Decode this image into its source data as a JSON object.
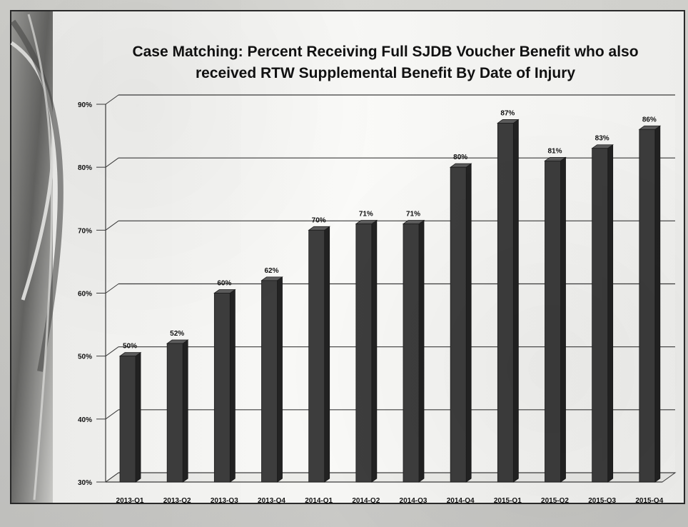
{
  "chart_data": {
    "type": "bar",
    "title": "Case Matching: Percent Receiving Full SJDB Voucher Benefit who also received  RTW Supplemental Benefit By Date of Injury",
    "title_lines": [
      "Case Matching: Percent Receiving Full SJDB Voucher Benefit who also",
      "received  RTW Supplemental Benefit By Date of Injury"
    ],
    "categories": [
      "2013-Q1",
      "2013-Q2",
      "2013-Q3",
      "2013-Q4",
      "2014-Q1",
      "2014-Q2",
      "2014-Q3",
      "2014-Q4",
      "2015-Q1",
      "2015-Q2",
      "2015-Q3",
      "2015-Q4"
    ],
    "values": [
      50,
      52,
      60,
      62,
      70,
      71,
      71,
      80,
      87,
      81,
      83,
      86
    ],
    "value_labels": [
      "50%",
      "52%",
      "60%",
      "62%",
      "70%",
      "71%",
      "71%",
      "80%",
      "87%",
      "81%",
      "83%",
      "86%"
    ],
    "ylim": [
      30,
      90
    ],
    "yticks": [
      30,
      40,
      50,
      60,
      70,
      80,
      90
    ],
    "ytick_labels": [
      "30%",
      "40%",
      "50%",
      "60%",
      "70%",
      "80%",
      "90%"
    ],
    "xlabel": "",
    "ylabel": "",
    "grid": true,
    "legend": "none",
    "colors": {
      "bar_front": "#3d3d3d",
      "bar_side": "#222222",
      "bar_top": "#5d5d5d",
      "grid": "#3d3d3d",
      "text": "#111111",
      "slide_bg": "#f7f7f5",
      "decor_dark": "#3b3b3b",
      "decor_mid": "#8b8b88"
    }
  }
}
